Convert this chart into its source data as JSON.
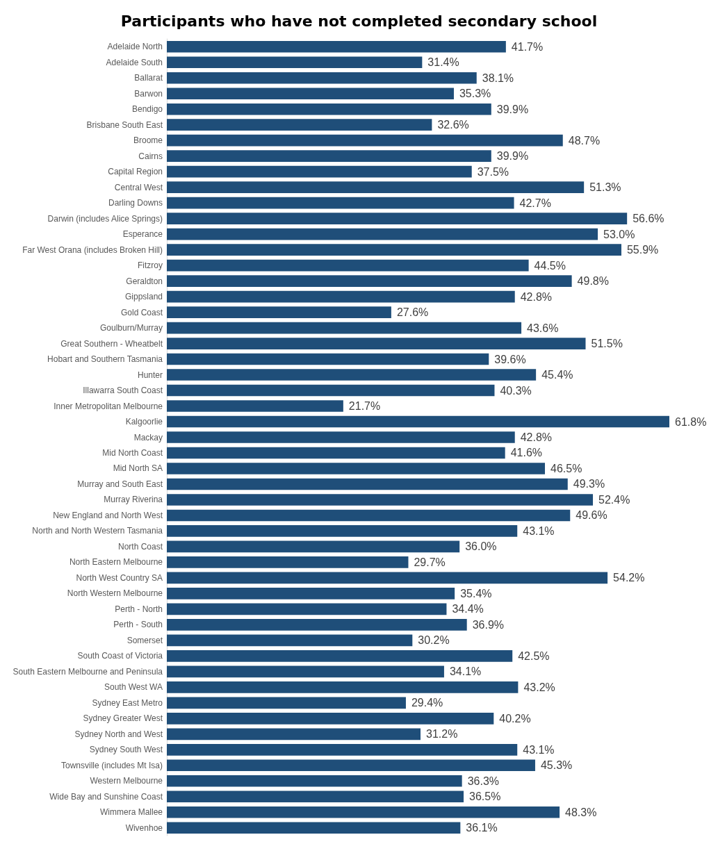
{
  "chart_data": {
    "type": "bar",
    "orientation": "horizontal",
    "title": "Participants who have not completed secondary school",
    "color": "#1f4e79",
    "categories": [
      "Adelaide North",
      "Adelaide South",
      "Ballarat",
      "Barwon",
      "Bendigo",
      "Brisbane South East",
      "Broome",
      "Cairns",
      "Capital Region",
      "Central West",
      "Darling Downs",
      "Darwin (includes Alice Springs)",
      "Esperance",
      "Far West Orana (includes Broken Hill)",
      "Fitzroy",
      "Geraldton",
      "Gippsland",
      "Gold Coast",
      "Goulburn/Murray",
      "Great Southern - Wheatbelt",
      "Hobart and Southern Tasmania",
      "Hunter",
      "Illawarra South Coast",
      "Inner Metropolitan Melbourne",
      "Kalgoorlie",
      "Mackay",
      "Mid North Coast",
      "Mid North SA",
      "Murray and South East",
      "Murray Riverina",
      "New England and North West",
      "North and North Western Tasmania",
      "North Coast",
      "North Eastern Melbourne",
      "North West Country SA",
      "North Western Melbourne",
      "Perth - North",
      "Perth - South",
      "Somerset",
      "South Coast of Victoria",
      "South Eastern Melbourne and Peninsula",
      "South West WA",
      "Sydney East Metro",
      "Sydney Greater West",
      "Sydney North and West",
      "Sydney South West",
      "Townsville (includes Mt Isa)",
      "Western Melbourne",
      "Wide Bay and Sunshine Coast",
      "Wimmera Mallee",
      "Wivenhoe"
    ],
    "values": [
      41.7,
      31.4,
      38.1,
      35.3,
      39.9,
      32.6,
      48.7,
      39.9,
      37.5,
      51.3,
      42.7,
      56.6,
      53.0,
      55.9,
      44.5,
      49.8,
      42.8,
      27.6,
      43.6,
      51.5,
      39.6,
      45.4,
      40.3,
      21.7,
      61.8,
      42.8,
      41.6,
      46.5,
      49.3,
      52.4,
      49.6,
      43.1,
      36.0,
      29.7,
      54.2,
      35.4,
      34.4,
      36.9,
      30.2,
      42.5,
      34.1,
      43.2,
      29.4,
      40.2,
      31.2,
      43.1,
      45.3,
      36.3,
      36.5,
      48.3,
      36.1
    ],
    "value_labels": [
      "41.7%",
      "31.4%",
      "38.1%",
      "35.3%",
      "39.9%",
      "32.6%",
      "48.7%",
      "39.9%",
      "37.5%",
      "51.3%",
      "42.7%",
      "56.6%",
      "53.0%",
      "55.9%",
      "44.5%",
      "49.8%",
      "42.8%",
      "27.6%",
      "43.6%",
      "51.5%",
      "39.6%",
      "45.4%",
      "40.3%",
      "21.7%",
      "61.8%",
      "42.8%",
      "41.6%",
      "46.5%",
      "49.3%",
      "52.4%",
      "49.6%",
      "43.1%",
      "36.0%",
      "29.7%",
      "54.2%",
      "35.4%",
      "34.4%",
      "36.9%",
      "30.2%",
      "42.5%",
      "34.1%",
      "43.2%",
      "29.4%",
      "40.2%",
      "31.2%",
      "43.1%",
      "45.3%",
      "36.3%",
      "36.5%",
      "48.3%",
      "36.1%"
    ]
  }
}
